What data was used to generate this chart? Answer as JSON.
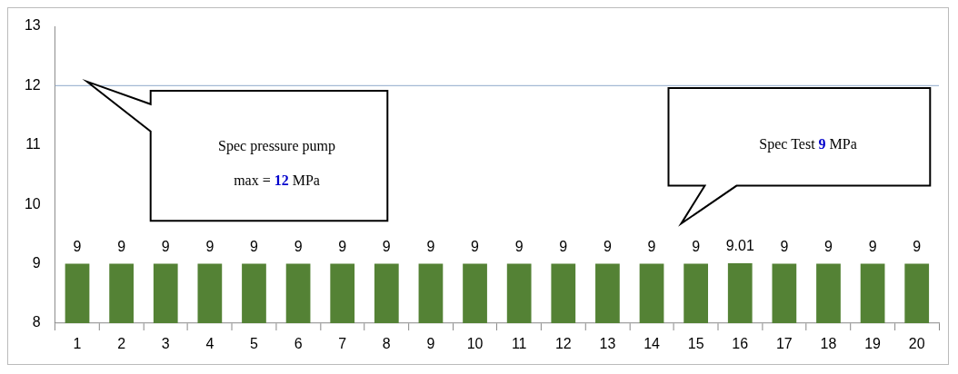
{
  "chart_data": {
    "type": "bar",
    "categories": [
      "1",
      "2",
      "3",
      "4",
      "5",
      "6",
      "7",
      "8",
      "9",
      "10",
      "11",
      "12",
      "13",
      "14",
      "15",
      "16",
      "17",
      "18",
      "19",
      "20"
    ],
    "values": [
      9,
      9,
      9,
      9,
      9,
      9,
      9,
      9,
      9,
      9,
      9,
      9,
      9,
      9,
      9,
      9.01,
      9,
      9,
      9,
      9
    ],
    "color": "#548235",
    "ylim": [
      8,
      13
    ],
    "yticks": [
      8,
      9,
      10,
      11,
      12,
      13
    ],
    "grid": false,
    "legend": false,
    "data_labels": true,
    "ref_lines": [
      {
        "axis": "y",
        "value": 12,
        "color": "#8eaacb"
      }
    ],
    "annotations": [
      "Spec pressure pump max = 12 MPa",
      "Spec Test 9 MPa"
    ]
  }
}
